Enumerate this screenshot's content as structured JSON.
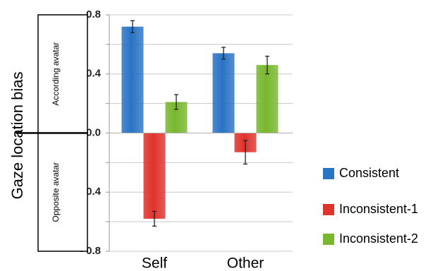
{
  "chart_data": {
    "type": "bar",
    "categories": [
      "Self",
      "Other"
    ],
    "series": [
      {
        "name": "Consistent",
        "values": [
          0.72,
          0.54
        ],
        "errors": [
          0.04,
          0.04
        ],
        "color": "#2a74c6"
      },
      {
        "name": "Inconsistent-1",
        "values": [
          -0.58,
          -0.13
        ],
        "errors": [
          0.05,
          0.08
        ],
        "color": "#e0332b"
      },
      {
        "name": "Inconsistent-2",
        "values": [
          0.21,
          0.46
        ],
        "errors": [
          0.05,
          0.06
        ],
        "color": "#78b72e"
      }
    ],
    "ylabel": "Gaze location bias",
    "ylim": [
      -0.8,
      0.8
    ],
    "yticks": [
      0.8,
      0.4,
      0.0,
      -0.4,
      -0.8
    ],
    "ytick_labels": [
      "0.8",
      "0.4",
      "0.0",
      "- 0.4",
      "- 0.8"
    ],
    "grid": true,
    "legend": "right",
    "regions": [
      {
        "label": "According avatar"
      },
      {
        "label": "Opposite avatar"
      }
    ]
  }
}
